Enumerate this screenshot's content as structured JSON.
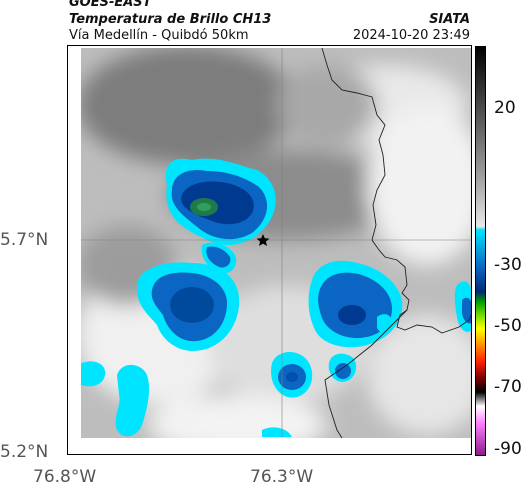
{
  "header": {
    "title_line1": "GOES-EAST",
    "title_line2": "Temperatura de Brillo CH13",
    "subtitle": "Vía Medellín - Quibdó 50km",
    "brand": "SIATA",
    "datetime": "2024-10-20 23:49"
  },
  "map": {
    "type": "satellite-brightness-temperature",
    "lon_ticks": [
      "76.8°W",
      "76.3°W"
    ],
    "lat_ticks": [
      "5.7°N",
      "5.2°N"
    ],
    "marker": "star",
    "colors": {
      "cold_core": "#2e8b57",
      "deep_blue": "#002a80",
      "blue": "#0a66c2",
      "cyan": "#00e5ff",
      "gray_light": "#e8e8e8",
      "gray_mid": "#b0b0b0",
      "gray_dark": "#8a8a8a"
    }
  },
  "colorbar": {
    "ticks": [
      "20",
      "-30",
      "-50",
      "-70",
      "-90"
    ],
    "palette_top_to_bottom": [
      "#000000",
      "#808080",
      "#ffffff",
      "#00e5ff",
      "#0050b0",
      "#003070",
      "#00c000",
      "#ffff00",
      "#ff8000",
      "#ff0000",
      "#000000",
      "#ffffff",
      "#ff80ff",
      "#800080"
    ]
  }
}
